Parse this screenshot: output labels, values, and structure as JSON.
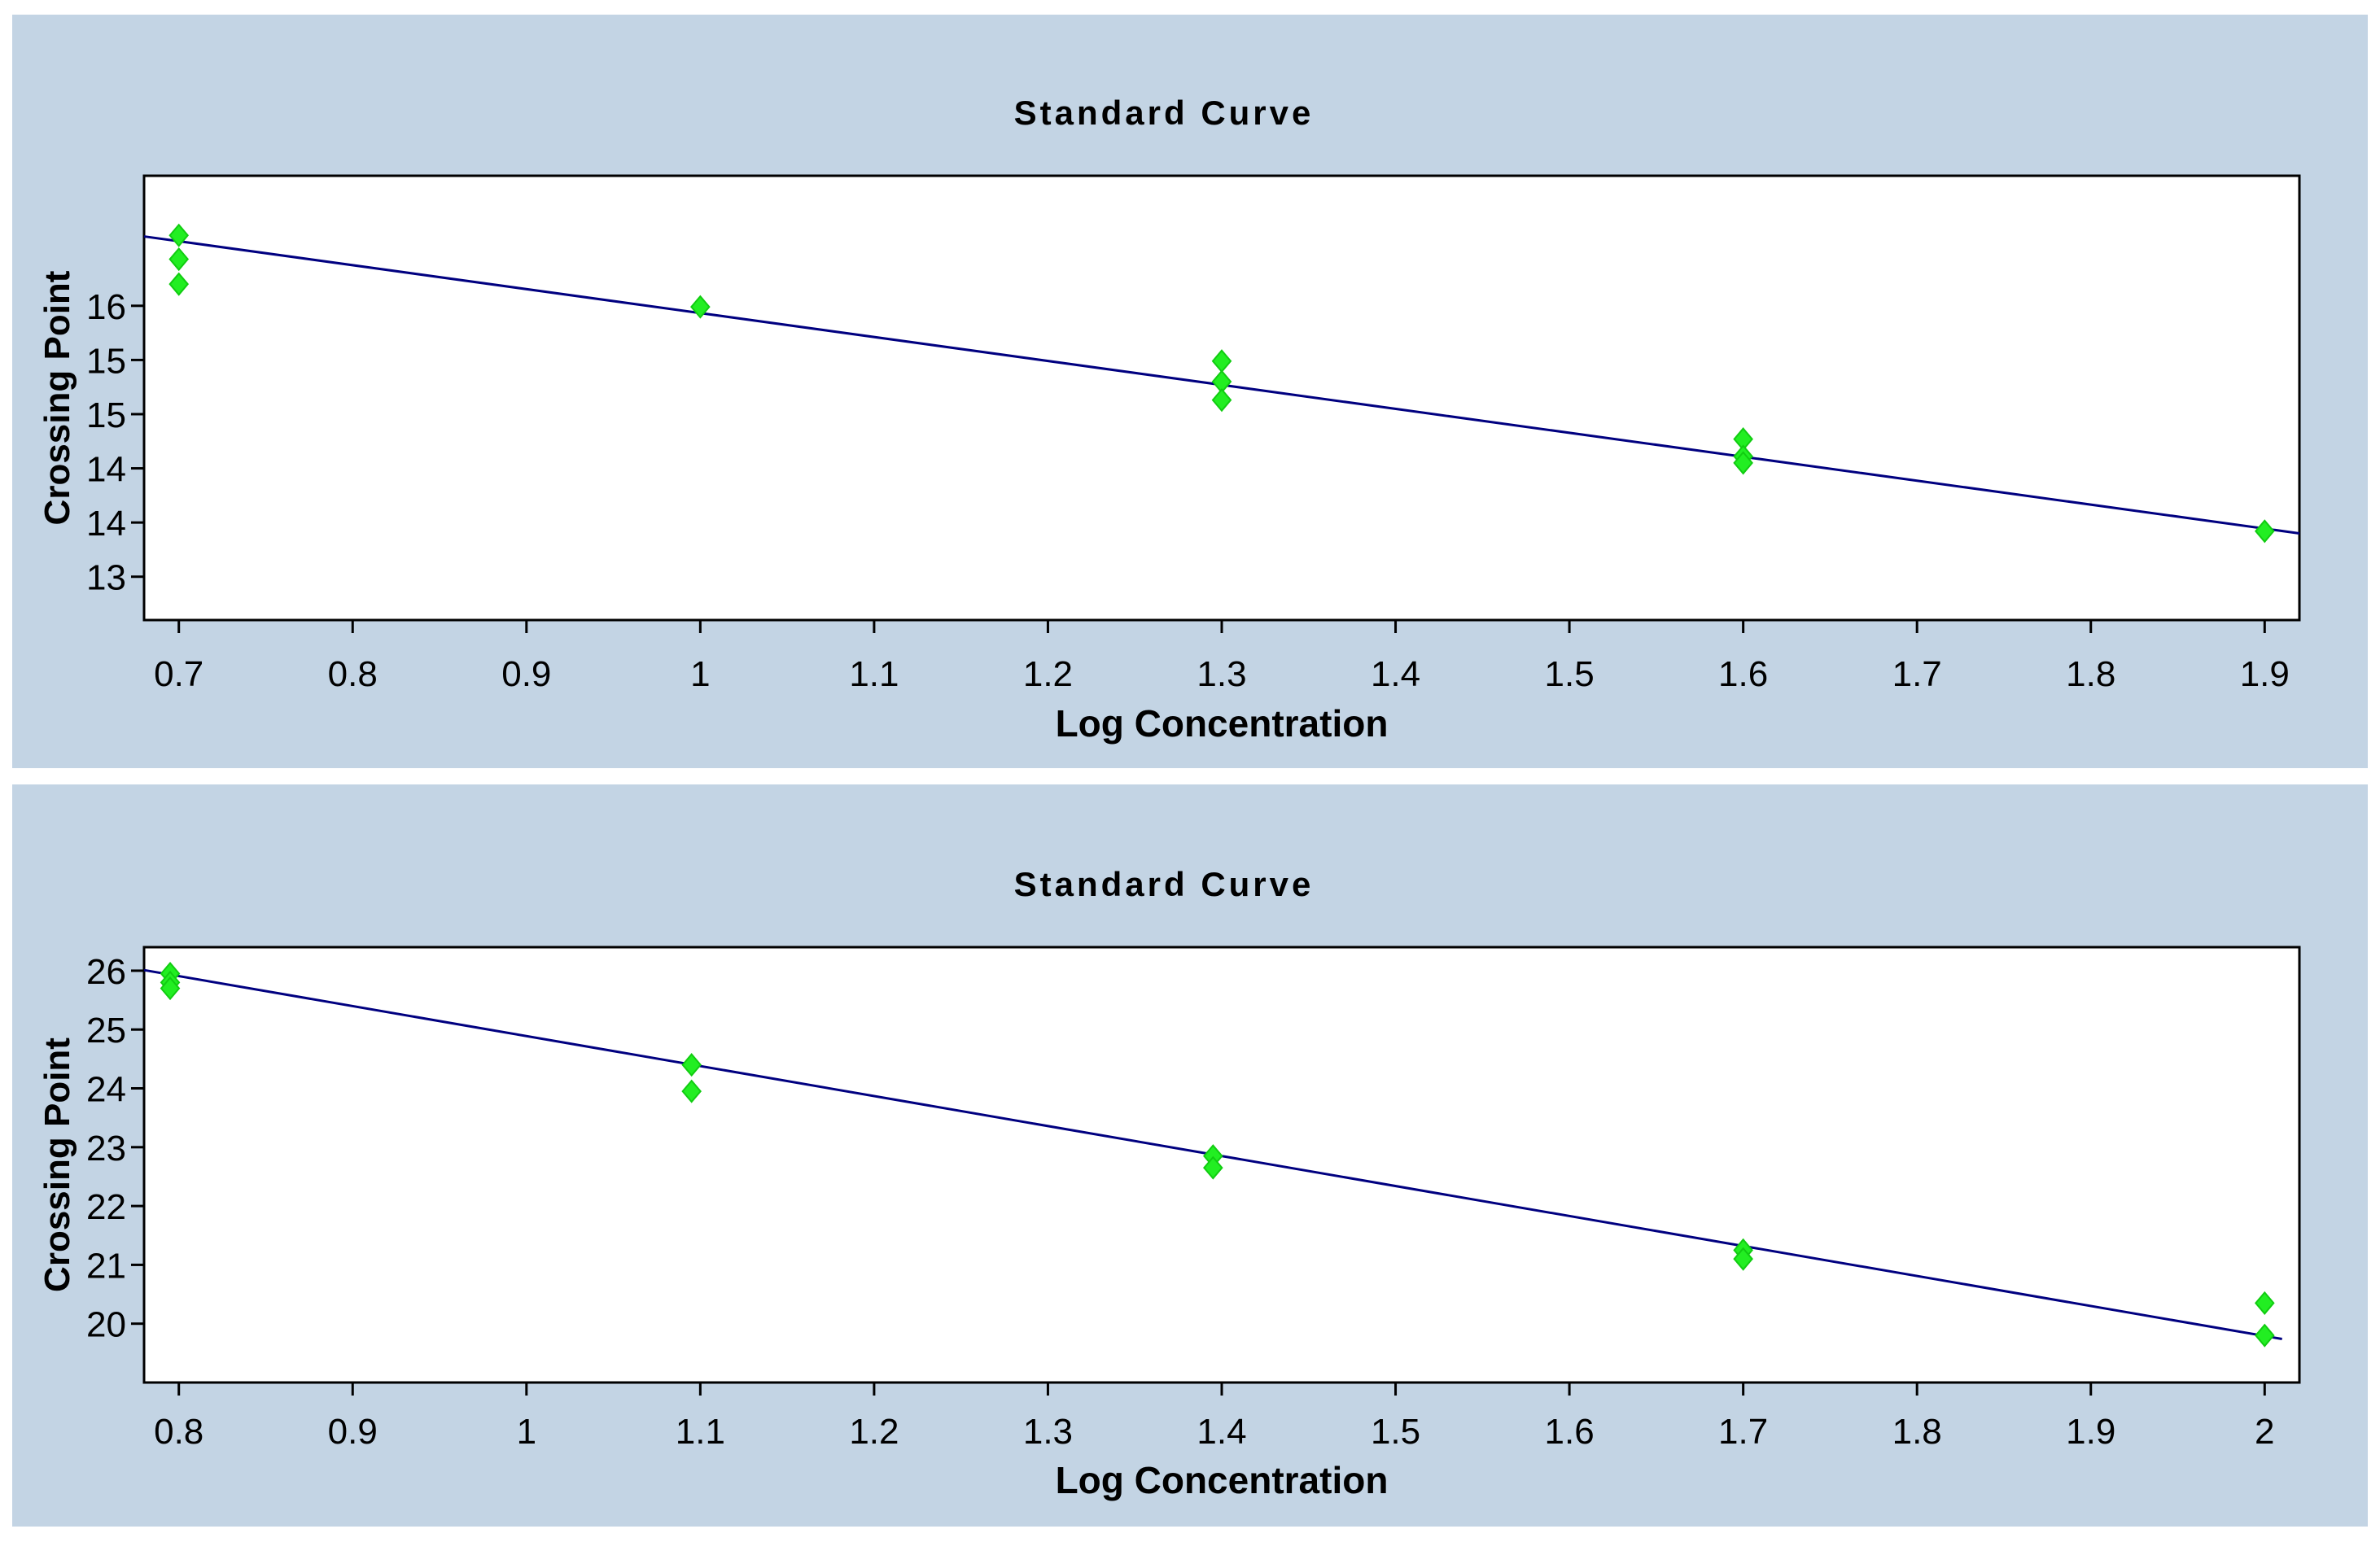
{
  "chart_data": [
    {
      "type": "scatter",
      "title": "Standard Curve",
      "xlabel": "Log Concentration",
      "ylabel": "Crossing Point",
      "xlim": [
        0.68,
        1.92
      ],
      "ylim": [
        12.6,
        16.7
      ],
      "x_ticks": [
        0.7,
        0.8,
        0.9,
        1.0,
        1.1,
        1.2,
        1.3,
        1.4,
        1.5,
        1.6,
        1.7,
        1.8,
        1.9
      ],
      "x_tick_labels": [
        "0.7",
        "0.8",
        "0.9",
        "1",
        "1.1",
        "1.2",
        "1.3",
        "1.4",
        "1.5",
        "1.6",
        "1.7",
        "1.8",
        "1.9"
      ],
      "y_ticks": [
        13.0,
        13.5,
        14.0,
        14.5,
        15.0,
        15.5
      ],
      "y_tick_labels": [
        "13",
        "14",
        "14",
        "15",
        "15",
        "16"
      ],
      "points": [
        {
          "x": 0.7,
          "y": 16.15
        },
        {
          "x": 0.7,
          "y": 15.93
        },
        {
          "x": 0.7,
          "y": 15.7
        },
        {
          "x": 1.0,
          "y": 15.49
        },
        {
          "x": 1.3,
          "y": 14.99
        },
        {
          "x": 1.3,
          "y": 14.8
        },
        {
          "x": 1.3,
          "y": 14.63
        },
        {
          "x": 1.6,
          "y": 14.27
        },
        {
          "x": 1.6,
          "y": 14.11
        },
        {
          "x": 1.6,
          "y": 14.05
        },
        {
          "x": 1.9,
          "y": 13.42
        }
      ],
      "fit_line": {
        "x": [
          0.68,
          1.92
        ],
        "y": [
          16.14,
          13.4
        ]
      },
      "colors": {
        "point": "#22ee22",
        "line": "#000080",
        "panel": "#c3d4e4",
        "plot": "#ffffff"
      }
    },
    {
      "type": "scatter",
      "title": "Standard Curve",
      "xlabel": "Log Concentration",
      "ylabel": "Crossing Point",
      "xlim": [
        0.78,
        2.02
      ],
      "ylim": [
        19.0,
        26.4
      ],
      "x_ticks": [
        0.8,
        0.9,
        1.0,
        1.1,
        1.2,
        1.3,
        1.4,
        1.5,
        1.6,
        1.7,
        1.8,
        1.9,
        2.0
      ],
      "x_tick_labels": [
        "0.8",
        "0.9",
        "1",
        "1.1",
        "1.2",
        "1.3",
        "1.4",
        "1.5",
        "1.6",
        "1.7",
        "1.8",
        "1.9",
        "2"
      ],
      "y_ticks": [
        20,
        21,
        22,
        23,
        24,
        25,
        26
      ],
      "y_tick_labels": [
        "20",
        "21",
        "22",
        "23",
        "24",
        "25",
        "26"
      ],
      "points": [
        {
          "x": 0.795,
          "y": 25.95
        },
        {
          "x": 0.795,
          "y": 25.8
        },
        {
          "x": 0.795,
          "y": 25.7
        },
        {
          "x": 1.095,
          "y": 24.4
        },
        {
          "x": 1.095,
          "y": 23.95
        },
        {
          "x": 1.395,
          "y": 22.85
        },
        {
          "x": 1.395,
          "y": 22.65
        },
        {
          "x": 1.7,
          "y": 21.25
        },
        {
          "x": 1.7,
          "y": 21.1
        },
        {
          "x": 2.0,
          "y": 20.35
        },
        {
          "x": 2.0,
          "y": 19.8
        }
      ],
      "fit_line": {
        "x": [
          0.78,
          2.01
        ],
        "y": [
          26.01,
          19.74
        ]
      },
      "colors": {
        "point": "#22ee22",
        "line": "#000080",
        "panel": "#c3d4e4",
        "plot": "#ffffff"
      }
    }
  ]
}
